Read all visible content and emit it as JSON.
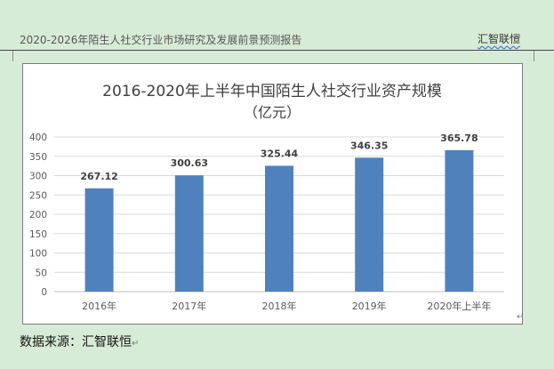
{
  "header": {
    "report_title": "2020-2026年陌生人社交行业市场研究及发展前景预测报告",
    "brand": "汇智联恒"
  },
  "chart_data": {
    "type": "bar",
    "title": "2016-2020年上半年中国陌生人社交行业资产规模",
    "subtitle": "（亿元）",
    "categories": [
      "2016年",
      "2017年",
      "2018年",
      "2019年",
      "2020年上半年"
    ],
    "values": [
      267.12,
      300.63,
      325.44,
      346.35,
      365.78
    ],
    "value_labels": [
      "267.12",
      "300.63",
      "325.44",
      "346.35",
      "365.78"
    ],
    "ylim": [
      0,
      400
    ],
    "yticks": [
      "0",
      "50",
      "100",
      "150",
      "200",
      "250",
      "300",
      "350",
      "400"
    ],
    "bar_color": "#4f81bd",
    "grid": true,
    "legend": "none"
  },
  "footer": {
    "source": "数据来源：汇智联恒"
  }
}
